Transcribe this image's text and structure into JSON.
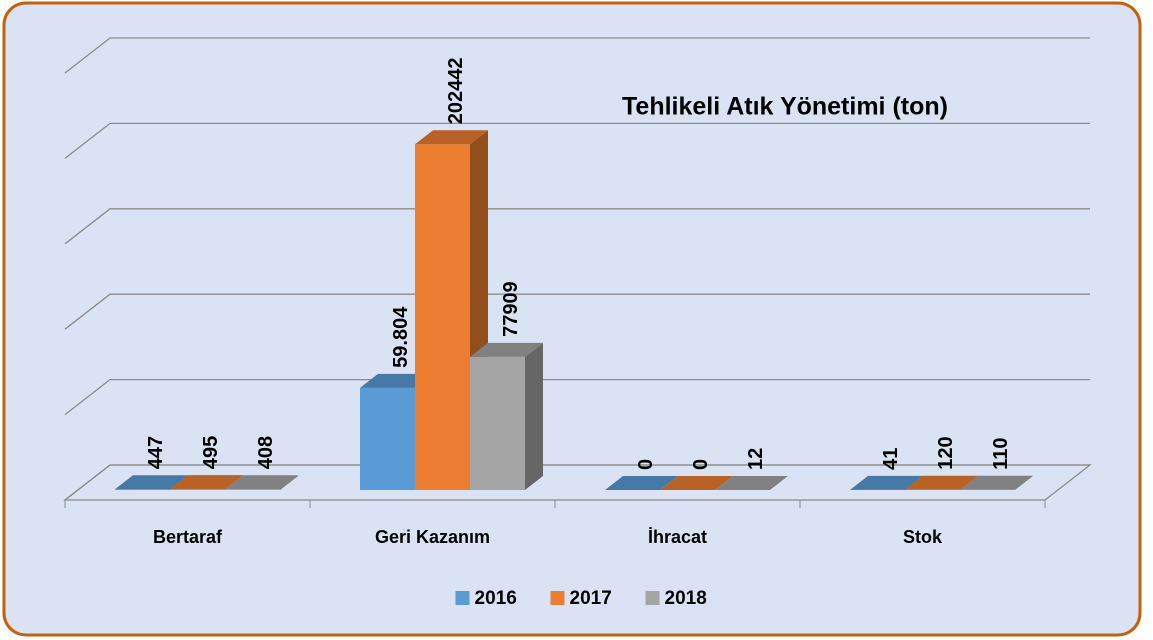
{
  "chart_data": {
    "type": "bar3d",
    "title": "Tehlikeli Atık Yönetimi (ton)",
    "categories": [
      "Bertaraf",
      "Geri Kazanım",
      "İhracat",
      "Stok"
    ],
    "series": [
      {
        "name": "2016",
        "color": "#5b9bd5",
        "values": [
          447,
          59804,
          0,
          41
        ],
        "value_labels": [
          "447",
          "59.804",
          "0",
          "41"
        ]
      },
      {
        "name": "2017",
        "color": "#ed7d31",
        "values": [
          495,
          202442,
          0,
          120
        ]
      },
      {
        "name": "2018",
        "color": "#a5a5a5",
        "values": [
          408,
          77909,
          12,
          110
        ]
      }
    ],
    "ylim": [
      0,
      250000
    ],
    "yticks": [
      0,
      50000,
      100000,
      150000,
      200000,
      250000
    ],
    "grid": true,
    "legend": "bottom"
  }
}
